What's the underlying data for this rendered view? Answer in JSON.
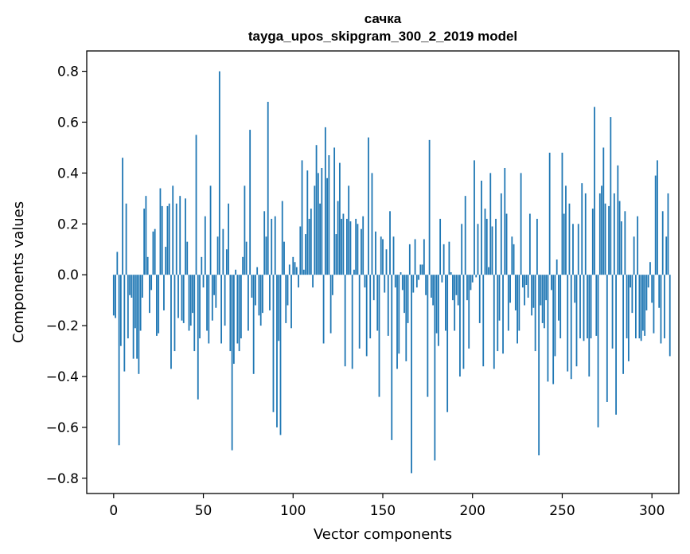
{
  "chart_data": {
    "type": "bar",
    "title": "сачка",
    "subtitle": "tayga_upos_skipgram_300_2_2019 model",
    "xlabel": "Vector components",
    "ylabel": "Components values",
    "xlim": [
      -15,
      315
    ],
    "ylim": [
      -0.86,
      0.88
    ],
    "xticks": [
      0,
      50,
      100,
      150,
      200,
      250,
      300
    ],
    "yticks": [
      -0.8,
      -0.6,
      -0.4,
      -0.2,
      0.0,
      0.2,
      0.4,
      0.6,
      0.8
    ],
    "ytick_labels": [
      "−0.8",
      "−0.6",
      "−0.4",
      "−0.2",
      "0.0",
      "0.2",
      "0.4",
      "0.6",
      "0.8"
    ],
    "grid": false,
    "bar_color": "#1f77b4",
    "series": [
      {
        "values": [
          -0.16,
          -0.17,
          0.09,
          -0.67,
          -0.28,
          0.46,
          -0.38,
          0.28,
          -0.25,
          -0.08,
          -0.09,
          -0.33,
          -0.21,
          -0.33,
          -0.39,
          -0.22,
          -0.09,
          0.26,
          0.31,
          0.07,
          -0.15,
          -0.06,
          0.17,
          0.18,
          -0.24,
          -0.23,
          0.34,
          0.27,
          -0.14,
          0.11,
          0.27,
          0.28,
          -0.37,
          0.35,
          -0.3,
          0.28,
          -0.17,
          0.31,
          -0.18,
          -0.19,
          0.3,
          0.13,
          -0.22,
          -0.2,
          -0.15,
          -0.3,
          0.55,
          -0.49,
          -0.25,
          0.07,
          -0.05,
          0.23,
          -0.22,
          -0.27,
          0.35,
          -0.18,
          -0.08,
          -0.13,
          0.15,
          0.8,
          -0.27,
          0.18,
          -0.2,
          0.1,
          0.28,
          -0.3,
          -0.69,
          -0.35,
          0.02,
          -0.27,
          -0.3,
          -0.25,
          0.07,
          0.35,
          0.13,
          -0.22,
          0.57,
          -0.09,
          -0.39,
          -0.12,
          0.03,
          -0.16,
          -0.2,
          -0.15,
          0.25,
          0.15,
          0.68,
          -0.14,
          0.22,
          -0.54,
          0.23,
          -0.6,
          -0.26,
          -0.63,
          0.29,
          0.13,
          -0.19,
          -0.12,
          0.04,
          -0.21,
          0.07,
          0.05,
          0.03,
          -0.05,
          0.19,
          0.45,
          0.02,
          0.16,
          0.41,
          0.22,
          0.26,
          -0.05,
          0.35,
          0.51,
          0.4,
          0.28,
          0.42,
          -0.27,
          0.58,
          0.38,
          0.47,
          -0.23,
          -0.08,
          0.5,
          0.16,
          0.29,
          0.44,
          0.22,
          0.24,
          -0.36,
          0.22,
          0.35,
          0.21,
          -0.37,
          0.02,
          0.22,
          0.2,
          -0.29,
          0.18,
          0.23,
          -0.05,
          -0.32,
          0.54,
          -0.25,
          0.4,
          -0.1,
          0.17,
          -0.22,
          -0.48,
          0.15,
          0.14,
          -0.07,
          0.1,
          -0.24,
          0.25,
          -0.65,
          0.15,
          -0.05,
          -0.37,
          -0.31,
          0.01,
          -0.06,
          -0.15,
          -0.34,
          -0.19,
          0.12,
          -0.78,
          -0.07,
          0.14,
          -0.05,
          -0.02,
          0.04,
          0.04,
          0.14,
          -0.08,
          -0.48,
          0.53,
          -0.09,
          -0.12,
          -0.73,
          -0.23,
          -0.28,
          0.22,
          -0.03,
          0.12,
          -0.22,
          -0.54,
          0.13,
          0.01,
          -0.1,
          -0.22,
          -0.08,
          -0.12,
          -0.4,
          0.2,
          -0.37,
          0.31,
          -0.1,
          -0.29,
          -0.06,
          -0.03,
          0.45,
          -0.01,
          0.2,
          -0.19,
          0.37,
          -0.36,
          0.26,
          0.22,
          0.03,
          0.4,
          0.19,
          -0.37,
          0.22,
          -0.3,
          -0.18,
          0.32,
          -0.31,
          0.42,
          0.24,
          -0.22,
          -0.11,
          0.15,
          0.12,
          -0.14,
          -0.27,
          -0.22,
          0.4,
          -0.05,
          -0.12,
          -0.04,
          -0.09,
          0.24,
          -0.16,
          -0.13,
          -0.3,
          0.22,
          -0.71,
          -0.12,
          -0.19,
          -0.21,
          -0.1,
          -0.42,
          0.48,
          -0.06,
          -0.43,
          -0.32,
          0.06,
          -0.18,
          -0.25,
          0.48,
          0.24,
          0.35,
          -0.38,
          0.28,
          -0.41,
          0.2,
          -0.11,
          -0.36,
          0.2,
          -0.25,
          0.36,
          -0.26,
          0.32,
          -0.25,
          -0.4,
          -0.25,
          0.26,
          0.66,
          -0.24,
          -0.6,
          0.32,
          0.35,
          0.5,
          0.28,
          -0.5,
          0.27,
          0.62,
          -0.29,
          0.32,
          -0.55,
          0.43,
          0.29,
          0.21,
          -0.39,
          0.25,
          -0.25,
          -0.34,
          -0.05,
          -0.15,
          0.15,
          -0.25,
          0.23,
          -0.25,
          -0.26,
          -0.22,
          -0.24,
          -0.14,
          -0.05,
          0.05,
          -0.11,
          -0.23,
          0.39,
          0.45,
          -0.13,
          -0.27,
          0.25,
          -0.25,
          0.15,
          0.32,
          -0.32
        ]
      }
    ]
  }
}
